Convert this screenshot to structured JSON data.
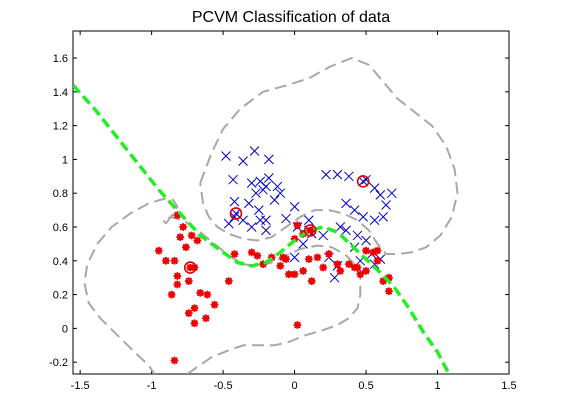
{
  "chart_data": {
    "type": "scatter",
    "title": "PCVM Classification of data",
    "xlabel": "",
    "ylabel": "",
    "xlim": [
      -1.55,
      1.5
    ],
    "ylim": [
      -0.27,
      1.76
    ],
    "x_ticks": [
      -1.5,
      -1,
      -0.5,
      0,
      0.5,
      1,
      1.5
    ],
    "x_tick_labels": [
      "-1.5",
      "-1",
      "-0.5",
      "0",
      "0.5",
      "1",
      "1.5"
    ],
    "y_ticks": [
      -0.2,
      0,
      0.2,
      0.4,
      0.6,
      0.8,
      1,
      1.2,
      1.4,
      1.6
    ],
    "y_tick_labels": [
      "-0.2",
      "0",
      "0.2",
      "0.4",
      "0.6",
      "0.8",
      "1",
      "1.2",
      "1.4",
      "1.6"
    ],
    "grid": false,
    "legend": "none",
    "colors": {
      "class_x": "#0000cc",
      "class_star": "#ee0000",
      "prototype_circle": "#dd0000",
      "decision_boundary": "#22ee22",
      "margin_contours": "#a8a8a8"
    },
    "series": [
      {
        "marker": "x",
        "points": [
          [
            -0.48,
            1.02
          ],
          [
            -0.36,
            0.99
          ],
          [
            -0.28,
            1.05
          ],
          [
            -0.18,
            1.0
          ],
          [
            -0.43,
            0.88
          ],
          [
            -0.3,
            0.86
          ],
          [
            -0.24,
            0.87
          ],
          [
            -0.22,
            0.82
          ],
          [
            -0.27,
            0.8
          ],
          [
            -0.18,
            0.89
          ],
          [
            -0.2,
            0.84
          ],
          [
            -0.12,
            0.84
          ],
          [
            -0.1,
            0.8
          ],
          [
            -0.14,
            0.76
          ],
          [
            -0.42,
            0.75
          ],
          [
            -0.32,
            0.74
          ],
          [
            -0.25,
            0.7
          ],
          [
            -0.2,
            0.64
          ],
          [
            -0.24,
            0.64
          ],
          [
            -0.3,
            0.6
          ],
          [
            -0.36,
            0.64
          ],
          [
            -0.42,
            0.66
          ],
          [
            -0.46,
            0.62
          ],
          [
            -0.2,
            0.58
          ],
          [
            -0.06,
            0.65
          ],
          [
            0.0,
            0.72
          ],
          [
            0.02,
            0.6
          ],
          [
            0.1,
            0.64
          ],
          [
            0.12,
            0.56
          ],
          [
            0.06,
            0.5
          ],
          [
            0.22,
            0.91
          ],
          [
            0.3,
            0.91
          ],
          [
            0.38,
            0.9
          ],
          [
            0.5,
            0.88
          ],
          [
            0.56,
            0.83
          ],
          [
            0.6,
            0.79
          ],
          [
            0.68,
            0.8
          ],
          [
            0.36,
            0.74
          ],
          [
            0.42,
            0.7
          ],
          [
            0.48,
            0.66
          ],
          [
            0.56,
            0.64
          ],
          [
            0.62,
            0.66
          ],
          [
            0.64,
            0.73
          ],
          [
            0.32,
            0.6
          ],
          [
            0.36,
            0.58
          ],
          [
            0.44,
            0.55
          ],
          [
            0.5,
            0.52
          ],
          [
            0.54,
            0.44
          ],
          [
            0.56,
            0.38
          ],
          [
            0.6,
            0.41
          ],
          [
            0.24,
            0.42
          ],
          [
            0.3,
            0.37
          ],
          [
            0.28,
            0.3
          ],
          [
            0.46,
            0.4
          ],
          [
            0.0,
            0.42
          ],
          [
            0.42,
            0.48
          ],
          [
            0.1,
            0.58
          ],
          [
            0.2,
            0.55
          ]
        ]
      },
      {
        "marker": "star",
        "points": [
          [
            -0.95,
            0.46
          ],
          [
            -0.84,
            0.4
          ],
          [
            -0.76,
            0.48
          ],
          [
            -0.68,
            0.52
          ],
          [
            -0.72,
            0.55
          ],
          [
            -0.78,
            0.6
          ],
          [
            -0.8,
            0.54
          ],
          [
            -0.82,
            0.67
          ],
          [
            -0.9,
            0.4
          ],
          [
            -0.7,
            0.36
          ],
          [
            -0.74,
            0.28
          ],
          [
            -0.82,
            0.26
          ],
          [
            -0.66,
            0.21
          ],
          [
            -0.61,
            0.2
          ],
          [
            -0.56,
            0.14
          ],
          [
            -0.62,
            0.06
          ],
          [
            -0.7,
            0.12
          ],
          [
            -0.74,
            0.09
          ],
          [
            -0.86,
            0.2
          ],
          [
            -0.82,
            0.31
          ],
          [
            -0.7,
            0.03
          ],
          [
            -0.84,
            -0.19
          ],
          [
            -0.42,
            0.44
          ],
          [
            -0.26,
            0.43
          ],
          [
            -0.22,
            0.38
          ],
          [
            -0.16,
            0.42
          ],
          [
            -0.1,
            0.37
          ],
          [
            -0.06,
            0.41
          ],
          [
            -0.04,
            0.32
          ],
          [
            0.0,
            0.32
          ],
          [
            0.06,
            0.34
          ],
          [
            0.1,
            0.41
          ],
          [
            0.16,
            0.42
          ],
          [
            0.2,
            0.36
          ],
          [
            0.24,
            0.44
          ],
          [
            0.3,
            0.38
          ],
          [
            0.32,
            0.34
          ],
          [
            0.38,
            0.38
          ],
          [
            0.42,
            0.36
          ],
          [
            0.46,
            0.32
          ],
          [
            0.5,
            0.34
          ],
          [
            0.55,
            0.45
          ],
          [
            0.58,
            0.46
          ],
          [
            0.62,
            0.28
          ],
          [
            0.66,
            0.22
          ],
          [
            0.66,
            0.3
          ],
          [
            0.58,
            0.4
          ],
          [
            -0.3,
            0.45
          ],
          [
            -0.46,
            0.28
          ],
          [
            0.02,
            0.61
          ],
          [
            0.06,
            0.56
          ],
          [
            0.12,
            0.28
          ],
          [
            0.0,
            0.53
          ],
          [
            -0.08,
            0.42
          ],
          [
            0.02,
            0.02
          ],
          [
            0.44,
            0.36
          ],
          [
            0.5,
            0.46
          ]
        ]
      }
    ],
    "highlighted_points": [
      {
        "x": -0.73,
        "y": 0.36,
        "marker": "star"
      },
      {
        "x": -0.41,
        "y": 0.68,
        "marker": "x"
      },
      {
        "x": 0.11,
        "y": 0.58,
        "marker": "star"
      },
      {
        "x": 0.48,
        "y": 0.87,
        "marker": "x"
      }
    ],
    "lines": [
      {
        "role": "decision-boundary",
        "style": "dashed",
        "points": [
          [
            -1.55,
            1.44
          ],
          [
            -1.4,
            1.3
          ],
          [
            -1.25,
            1.14
          ],
          [
            -1.1,
            0.98
          ],
          [
            -0.95,
            0.82
          ],
          [
            -0.8,
            0.68
          ],
          [
            -0.66,
            0.55
          ],
          [
            -0.5,
            0.45
          ],
          [
            -0.4,
            0.39
          ],
          [
            -0.3,
            0.37
          ],
          [
            -0.2,
            0.39
          ],
          [
            -0.1,
            0.45
          ],
          [
            0.0,
            0.52
          ],
          [
            0.1,
            0.58
          ],
          [
            0.2,
            0.6
          ],
          [
            0.3,
            0.57
          ],
          [
            0.4,
            0.49
          ],
          [
            0.5,
            0.41
          ],
          [
            0.6,
            0.33
          ],
          [
            0.7,
            0.24
          ],
          [
            0.8,
            0.12
          ],
          [
            0.9,
            -0.02
          ],
          [
            1.0,
            -0.14
          ],
          [
            1.08,
            -0.27
          ]
        ]
      },
      {
        "role": "upper-margin-contour",
        "style": "dashed",
        "points": [
          [
            -0.9,
            0.62
          ],
          [
            -0.85,
            0.68
          ],
          [
            -0.82,
            0.72
          ],
          [
            -0.85,
            0.76
          ],
          [
            -0.9,
            0.77
          ],
          [
            -1.02,
            0.74
          ],
          [
            -1.15,
            0.68
          ],
          [
            -1.28,
            0.6
          ],
          [
            -1.38,
            0.5
          ],
          [
            -1.45,
            0.38
          ],
          [
            -1.47,
            0.27
          ],
          [
            -1.44,
            0.15
          ],
          [
            -1.36,
            0.06
          ],
          [
            -1.24,
            -0.04
          ],
          [
            -1.12,
            -0.14
          ],
          [
            -1.02,
            -0.22
          ],
          [
            -0.98,
            -0.27
          ]
        ]
      },
      {
        "role": "lower-margin-contour",
        "style": "dashed",
        "points": [
          [
            -0.75,
            -0.27
          ],
          [
            -0.7,
            -0.24
          ],
          [
            -0.58,
            -0.17
          ],
          [
            -0.46,
            -0.13
          ],
          [
            -0.36,
            -0.1
          ],
          [
            -0.24,
            -0.1
          ],
          [
            -0.14,
            -0.1
          ],
          [
            -0.04,
            -0.08
          ],
          [
            0.08,
            -0.04
          ],
          [
            0.2,
            -0.01
          ],
          [
            0.3,
            0.02
          ],
          [
            0.38,
            0.06
          ],
          [
            0.44,
            0.12
          ],
          [
            0.46,
            0.2
          ],
          [
            0.46,
            0.3
          ],
          [
            0.42,
            0.38
          ],
          [
            0.35,
            0.44
          ],
          [
            0.26,
            0.48
          ],
          [
            0.16,
            0.49
          ],
          [
            0.04,
            0.47
          ],
          [
            -0.06,
            0.43
          ],
          [
            -0.16,
            0.39
          ],
          [
            -0.26,
            0.37
          ],
          [
            -0.36,
            0.38
          ],
          [
            -0.46,
            0.43
          ],
          [
            -0.56,
            0.5
          ],
          [
            -0.66,
            0.57
          ],
          [
            -0.76,
            0.63
          ],
          [
            -0.86,
            0.66
          ],
          [
            -0.92,
            0.64
          ],
          [
            -0.9,
            0.62
          ]
        ]
      },
      {
        "role": "outer-margin-contour",
        "style": "dashed",
        "points": [
          [
            -0.66,
            0.86
          ],
          [
            -0.58,
            1.04
          ],
          [
            -0.5,
            1.18
          ],
          [
            -0.38,
            1.3
          ],
          [
            -0.22,
            1.4
          ],
          [
            -0.05,
            1.44
          ],
          [
            0.1,
            1.48
          ],
          [
            0.25,
            1.55
          ],
          [
            0.4,
            1.6
          ],
          [
            0.52,
            1.56
          ],
          [
            0.62,
            1.46
          ],
          [
            0.72,
            1.36
          ],
          [
            0.84,
            1.28
          ],
          [
            0.96,
            1.2
          ],
          [
            1.06,
            1.08
          ],
          [
            1.12,
            0.94
          ],
          [
            1.14,
            0.8
          ],
          [
            1.1,
            0.66
          ],
          [
            1.02,
            0.55
          ],
          [
            0.92,
            0.48
          ],
          [
            0.82,
            0.45
          ],
          [
            0.72,
            0.44
          ],
          [
            0.64,
            0.44
          ],
          [
            0.58,
            0.5
          ],
          [
            0.52,
            0.58
          ],
          [
            0.44,
            0.64
          ],
          [
            0.34,
            0.68
          ],
          [
            0.24,
            0.7
          ],
          [
            0.14,
            0.7
          ],
          [
            0.04,
            0.66
          ],
          [
            -0.06,
            0.6
          ],
          [
            -0.16,
            0.54
          ],
          [
            -0.26,
            0.52
          ],
          [
            -0.36,
            0.53
          ],
          [
            -0.46,
            0.56
          ],
          [
            -0.54,
            0.6
          ],
          [
            -0.6,
            0.66
          ],
          [
            -0.64,
            0.74
          ],
          [
            -0.66,
            0.86
          ]
        ]
      }
    ]
  }
}
